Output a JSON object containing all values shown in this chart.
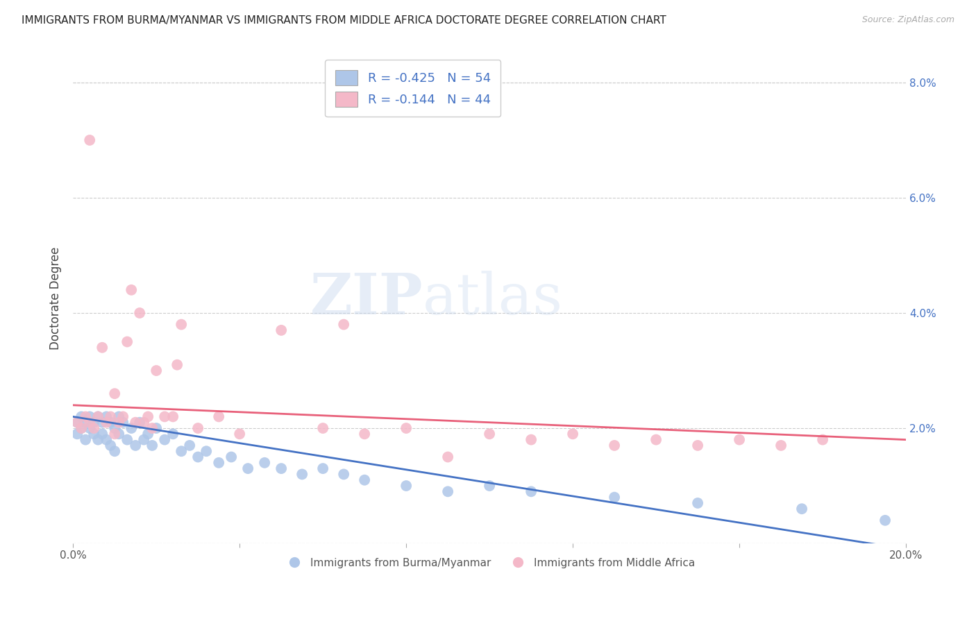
{
  "title": "IMMIGRANTS FROM BURMA/MYANMAR VS IMMIGRANTS FROM MIDDLE AFRICA DOCTORATE DEGREE CORRELATION CHART",
  "source": "Source: ZipAtlas.com",
  "ylabel": "Doctorate Degree",
  "xlim": [
    0.0,
    0.2
  ],
  "ylim": [
    0.0,
    0.085
  ],
  "blue_R": -0.425,
  "blue_N": 54,
  "pink_R": -0.144,
  "pink_N": 44,
  "blue_color": "#aec6e8",
  "pink_color": "#f4b8c8",
  "blue_line_color": "#4472c4",
  "pink_line_color": "#e8607a",
  "legend_label_blue": "Immigrants from Burma/Myanmar",
  "legend_label_pink": "Immigrants from Middle Africa",
  "watermark_zip": "ZIP",
  "watermark_atlas": "atlas",
  "blue_x": [
    0.001,
    0.001,
    0.002,
    0.002,
    0.003,
    0.003,
    0.004,
    0.004,
    0.005,
    0.005,
    0.006,
    0.006,
    0.007,
    0.007,
    0.008,
    0.008,
    0.009,
    0.009,
    0.01,
    0.01,
    0.011,
    0.011,
    0.012,
    0.013,
    0.014,
    0.015,
    0.016,
    0.017,
    0.018,
    0.019,
    0.02,
    0.022,
    0.024,
    0.026,
    0.028,
    0.03,
    0.032,
    0.035,
    0.038,
    0.042,
    0.046,
    0.05,
    0.055,
    0.06,
    0.065,
    0.07,
    0.08,
    0.09,
    0.1,
    0.11,
    0.13,
    0.15,
    0.175,
    0.195
  ],
  "blue_y": [
    0.021,
    0.019,
    0.022,
    0.02,
    0.021,
    0.018,
    0.022,
    0.02,
    0.021,
    0.019,
    0.022,
    0.018,
    0.021,
    0.019,
    0.022,
    0.018,
    0.021,
    0.017,
    0.02,
    0.016,
    0.022,
    0.019,
    0.021,
    0.018,
    0.02,
    0.017,
    0.021,
    0.018,
    0.019,
    0.017,
    0.02,
    0.018,
    0.019,
    0.016,
    0.017,
    0.015,
    0.016,
    0.014,
    0.015,
    0.013,
    0.014,
    0.013,
    0.012,
    0.013,
    0.012,
    0.011,
    0.01,
    0.009,
    0.01,
    0.009,
    0.008,
    0.007,
    0.006,
    0.004
  ],
  "pink_x": [
    0.001,
    0.002,
    0.003,
    0.004,
    0.005,
    0.006,
    0.007,
    0.008,
    0.009,
    0.01,
    0.011,
    0.012,
    0.013,
    0.014,
    0.015,
    0.016,
    0.017,
    0.018,
    0.019,
    0.02,
    0.022,
    0.024,
    0.026,
    0.03,
    0.035,
    0.04,
    0.05,
    0.06,
    0.07,
    0.08,
    0.09,
    0.1,
    0.11,
    0.12,
    0.13,
    0.14,
    0.15,
    0.16,
    0.17,
    0.18,
    0.004,
    0.01,
    0.025,
    0.065
  ],
  "pink_y": [
    0.021,
    0.02,
    0.022,
    0.021,
    0.02,
    0.022,
    0.034,
    0.021,
    0.022,
    0.019,
    0.021,
    0.022,
    0.035,
    0.044,
    0.021,
    0.04,
    0.021,
    0.022,
    0.02,
    0.03,
    0.022,
    0.022,
    0.038,
    0.02,
    0.022,
    0.019,
    0.037,
    0.02,
    0.019,
    0.02,
    0.015,
    0.019,
    0.018,
    0.019,
    0.017,
    0.018,
    0.017,
    0.018,
    0.017,
    0.018,
    0.07,
    0.026,
    0.031,
    0.038
  ]
}
